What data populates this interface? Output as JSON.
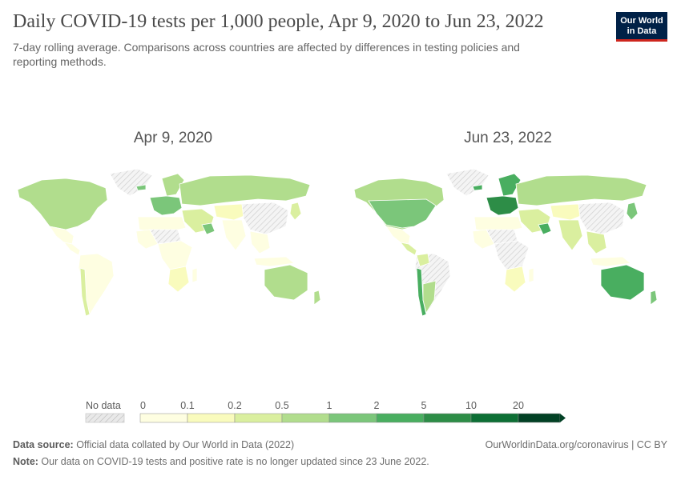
{
  "header": {
    "title": "Daily COVID-19 tests per 1,000 people, Apr 9, 2020 to Jun 23, 2022",
    "subtitle": "7-day rolling average. Comparisons across countries are affected by differences in testing policies and reporting methods.",
    "logo_line1": "Our World",
    "logo_line2": "in Data"
  },
  "maps": {
    "left": {
      "label": "Apr 9, 2020",
      "regions": {
        "north_america": 0.75,
        "greenland": null,
        "mexico": 0.05,
        "central_america": 0.05,
        "south_america": 0.05,
        "chile_strip": 0.3,
        "brazil": null,
        "europe_west": 1.2,
        "scandinavia": 0.8,
        "iceland": 1.5,
        "russia": 0.7,
        "middle_east": 0.4,
        "gulf": 1.5,
        "north_africa": 0.05,
        "sahara_no_data": null,
        "west_africa": 0.05,
        "central_africa": 0.04,
        "south_africa": 0.15,
        "madagascar": 0.05,
        "china": null,
        "central_asia": 0.1,
        "south_asia": 0.05,
        "southeast_asia": 0.05,
        "japan_korea": 0.3,
        "indonesia": 0.05,
        "australia": 0.6,
        "new_zealand": 0.9,
        "antarctica": null
      }
    },
    "right": {
      "label": "Jun 23, 2022",
      "regions": {
        "north_america": 0.8,
        "usa": 1.8,
        "greenland": null,
        "mexico": 0.05,
        "central_america": 0.3,
        "south_america": null,
        "chile_strip": 3.5,
        "argentina": 0.8,
        "colombia": 0.4,
        "europe_west": 6,
        "scandinavia": 3,
        "iceland": 3,
        "russia": 0.9,
        "middle_east": 0.4,
        "gulf": 3,
        "north_africa": 0.05,
        "sahara_no_data": null,
        "west_africa": 0.05,
        "central_africa": null,
        "south_africa": 0.15,
        "madagascar": 0.05,
        "china": null,
        "central_asia": 0.1,
        "south_asia": 0.3,
        "southeast_asia": 0.2,
        "japan_korea": 1.2,
        "indonesia": 0.05,
        "australia": 4,
        "new_zealand": 1.8,
        "antarctica": null
      }
    }
  },
  "legend": {
    "no_data_label": "No data",
    "no_data_color": "#e9e9e9",
    "ticks": [
      "0",
      "0.1",
      "0.2",
      "0.5",
      "1",
      "2",
      "5",
      "10",
      "20"
    ],
    "colors": [
      "#fefee1",
      "#f9fbbd",
      "#daef9f",
      "#b1dd8d",
      "#7bc67a",
      "#49ae60",
      "#2d8d47",
      "#0d6f35",
      "#024125"
    ]
  },
  "footer": {
    "source_label": "Data source:",
    "source_text": " Official data collated by Our World in Data (2022)",
    "link_text": "OurWorldinData.org/coronavirus | CC BY",
    "note_label": "Note:",
    "note_text": " Our data on COVID-19 tests and positive rate is no longer updated since 23 June 2022."
  }
}
